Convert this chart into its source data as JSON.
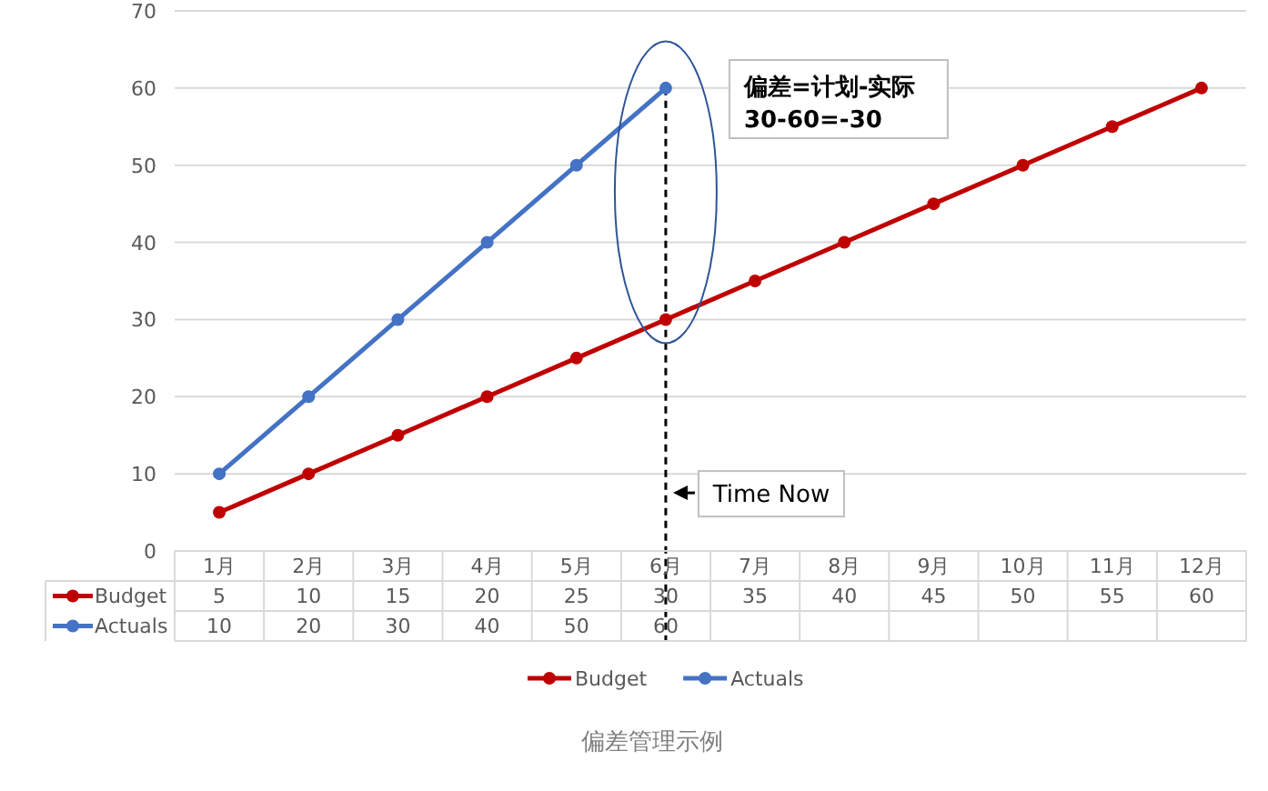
{
  "chart_data": {
    "type": "line",
    "categories": [
      "1月",
      "2月",
      "3月",
      "4月",
      "5月",
      "6月",
      "7月",
      "8月",
      "9月",
      "10月",
      "11月",
      "12月"
    ],
    "series": [
      {
        "name": "Budget",
        "color": "#c00000",
        "values": [
          5,
          10,
          15,
          20,
          25,
          30,
          35,
          40,
          45,
          50,
          55,
          60
        ]
      },
      {
        "name": "Actuals",
        "color": "#4472c4",
        "values": [
          10,
          20,
          30,
          40,
          50,
          60,
          null,
          null,
          null,
          null,
          null,
          null
        ]
      }
    ],
    "ylim": [
      0,
      70
    ],
    "yticks": [
      0,
      10,
      20,
      30,
      40,
      50,
      60,
      70
    ],
    "grid": "y",
    "marker": "circle",
    "line_style": "solid",
    "data_labels": true,
    "legend": "bottom",
    "ref_lines": [
      {
        "axis": "x",
        "value": "6月",
        "label": "Time Now",
        "line_style": "dashed",
        "color": "#000000"
      }
    ],
    "annotations": [
      "偏差=计划-实际",
      "30-60=-30",
      "偏差管理示例"
    ]
  }
}
